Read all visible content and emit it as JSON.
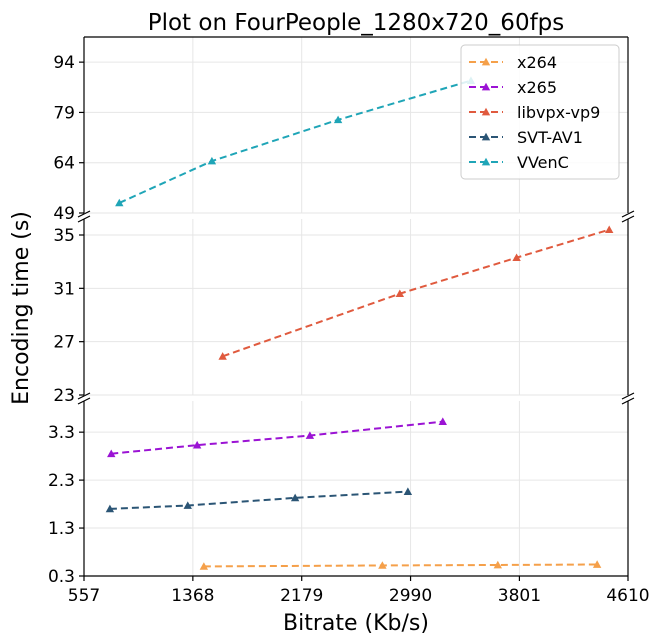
{
  "chart_data": {
    "type": "line",
    "title": "Plot on FourPeople_1280x720_60fps",
    "xlabel": "Bitrate (Kb/s)",
    "ylabel": "Encoding time (s)",
    "xlim": [
      557,
      4610
    ],
    "xticks": [
      "557",
      "1368",
      "2179",
      "2990",
      "3801",
      "4610"
    ],
    "grid": true,
    "legend_position": "top-right",
    "panels": [
      {
        "id": "top",
        "ylim": [
          49,
          101.5
        ],
        "yticks": [
          "49",
          "64",
          "79",
          "94"
        ]
      },
      {
        "id": "middle",
        "ylim": [
          23,
          36.2
        ],
        "yticks": [
          "23",
          "27",
          "31",
          "35"
        ]
      },
      {
        "id": "bottom",
        "ylim": [
          0.3,
          3.95
        ],
        "yticks": [
          "0.3",
          "1.3",
          "2.3",
          "3.3"
        ]
      }
    ],
    "series": [
      {
        "name": "x264",
        "color": "#f5a04a",
        "panel": "bottom",
        "x": [
          1450,
          2780,
          3640,
          4380
        ],
        "y": [
          0.5,
          0.52,
          0.53,
          0.54
        ]
      },
      {
        "name": "x265",
        "color": "#9b13d4",
        "panel": "bottom",
        "x": [
          760,
          1400,
          2240,
          3230
        ],
        "y": [
          2.85,
          3.03,
          3.23,
          3.52
        ]
      },
      {
        "name": "libvpx-vp9",
        "color": "#e05a3e",
        "panel": "middle",
        "x": [
          1590,
          2910,
          3780,
          4470
        ],
        "y": [
          25.9,
          30.6,
          33.3,
          35.4
        ]
      },
      {
        "name": "SVT-AV1",
        "color": "#2b5575",
        "panel": "bottom",
        "x": [
          750,
          1330,
          2130,
          2970
        ],
        "y": [
          1.7,
          1.77,
          1.93,
          2.06
        ]
      },
      {
        "name": "VVenC",
        "color": "#1fa5b7",
        "panel": "top",
        "x": [
          820,
          1510,
          2450,
          3440
        ],
        "y": [
          52,
          64.5,
          76.8,
          88.5
        ]
      }
    ]
  }
}
